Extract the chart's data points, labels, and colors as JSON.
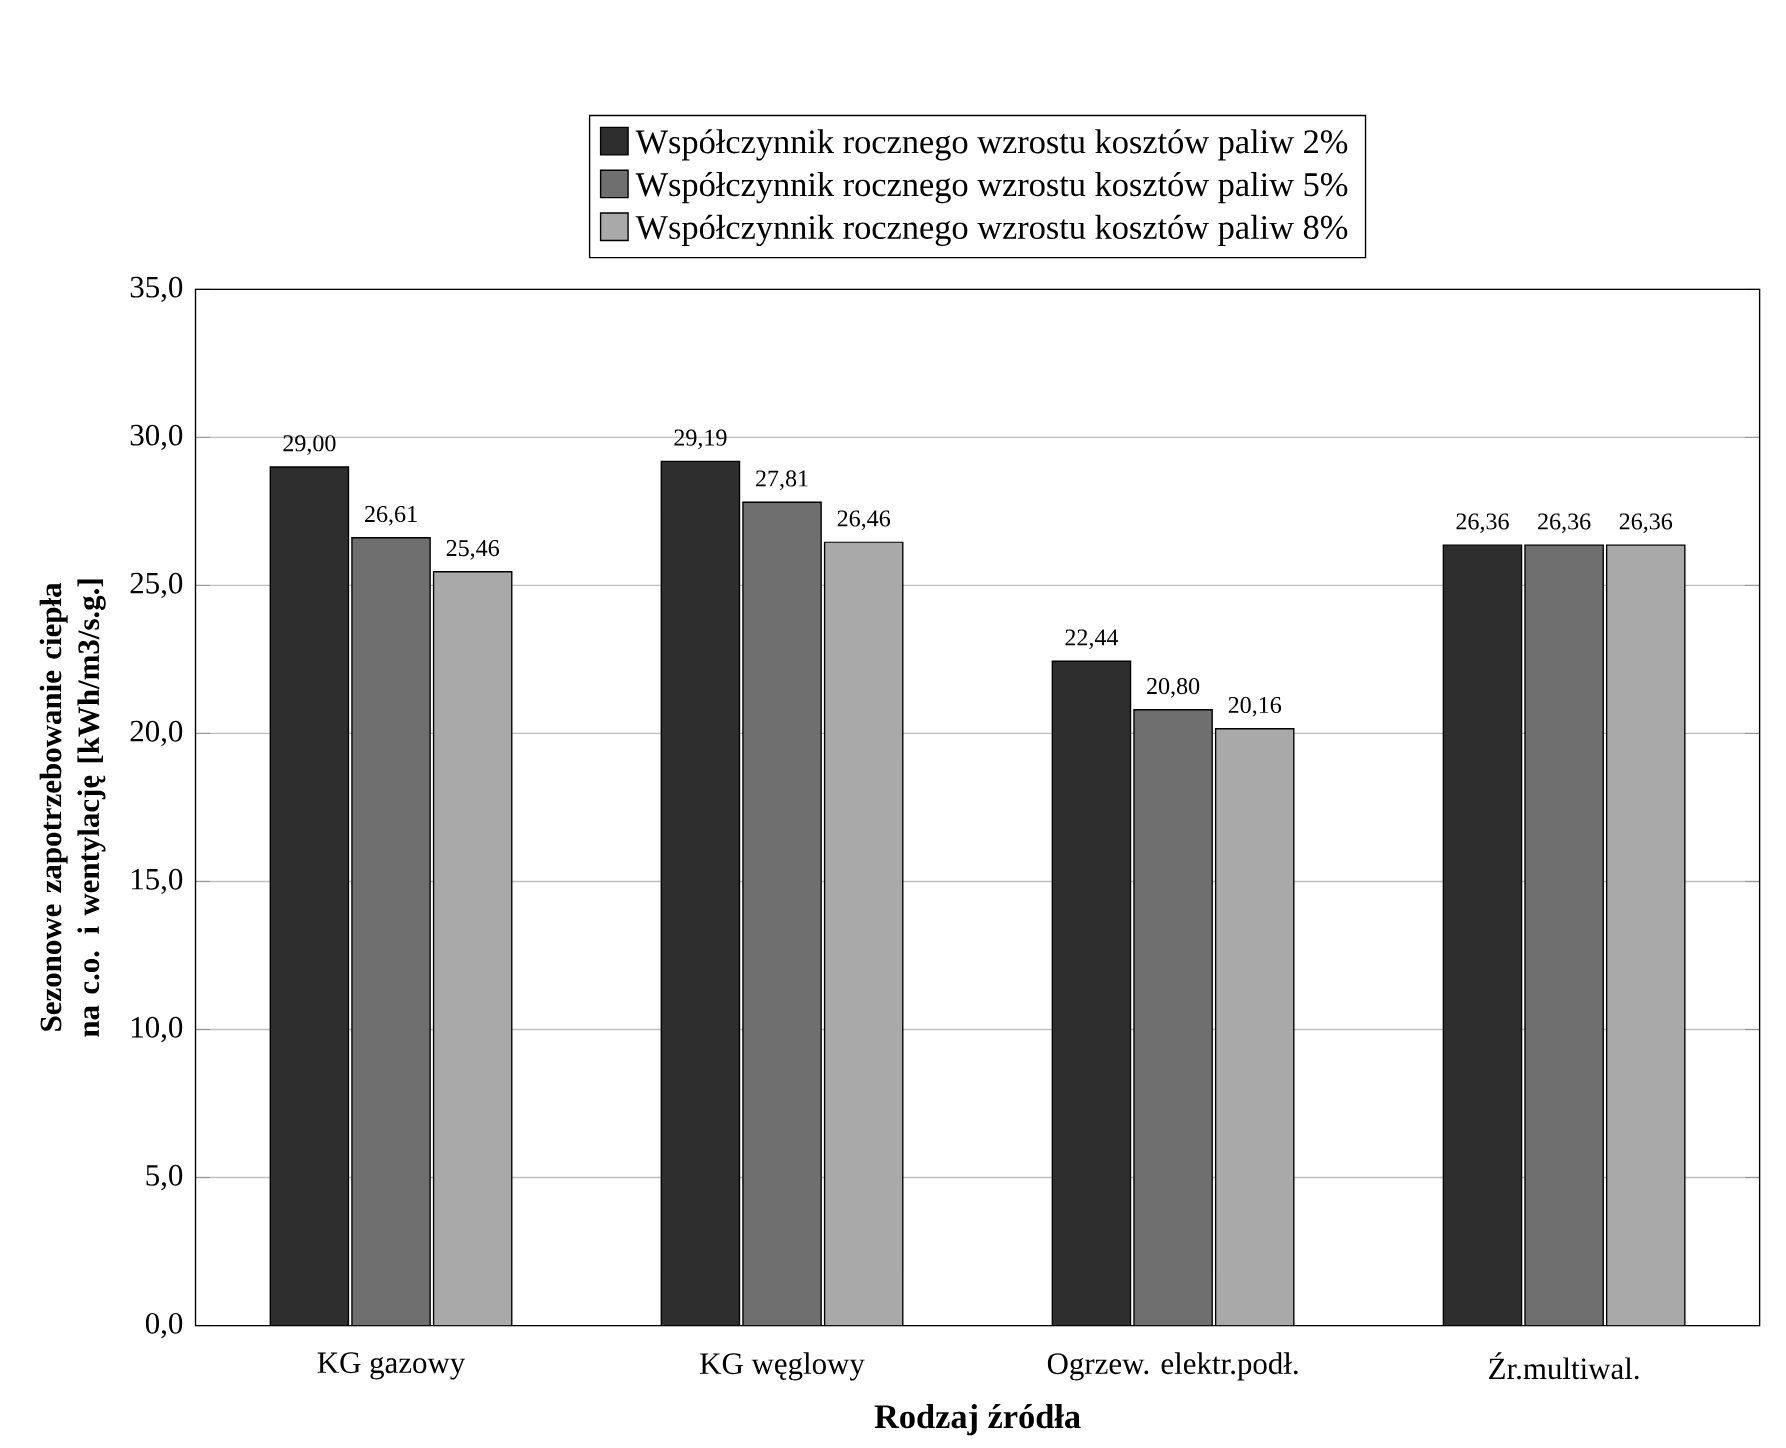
{
  "chart_data": {
    "type": "bar",
    "xlabel": "Rodzaj źródła",
    "ylabel": "Sezonowe zapotrzebowanie ciepła na c.o. i wentylację [kWh/m3/s.g.]",
    "categories": [
      "KG gazowy",
      "KG węglowy",
      "Ogrzew. elektr.podł.",
      "Źr.multiwal."
    ],
    "series": [
      {
        "name": "Współczynnik rocznego wzrostu kosztów paliw 2%",
        "color": "#2e2e2e",
        "values": [
          29.0,
          29.19,
          22.44,
          26.36
        ],
        "value_labels": [
          "29,00",
          "29,19",
          "22,44",
          "26,36"
        ]
      },
      {
        "name": "Współczynnik rocznego wzrostu kosztów paliw 5%",
        "color": "#6f6f6f",
        "values": [
          26.61,
          27.81,
          20.8,
          26.36
        ],
        "value_labels": [
          "26,61",
          "27,81",
          "20,80",
          "26,36"
        ]
      },
      {
        "name": "Współczynnik rocznego wzrostu kosztów paliw 8%",
        "color": "#a9a9a9",
        "values": [
          25.46,
          26.46,
          20.16,
          26.36
        ],
        "value_labels": [
          "25,46",
          "26,46",
          "20,16",
          "26,36"
        ]
      }
    ],
    "ylim": [
      0,
      35
    ],
    "yticks": [
      {
        "value": 0,
        "label": "0,0"
      },
      {
        "value": 5,
        "label": "5,0"
      },
      {
        "value": 10,
        "label": "10,0"
      },
      {
        "value": 15,
        "label": "15,0"
      },
      {
        "value": 20,
        "label": "20,0"
      },
      {
        "value": 25,
        "label": "25,0"
      },
      {
        "value": 30,
        "label": "30,0"
      },
      {
        "value": 35,
        "label": "35,0"
      }
    ],
    "grid": "y",
    "legend": "top"
  }
}
